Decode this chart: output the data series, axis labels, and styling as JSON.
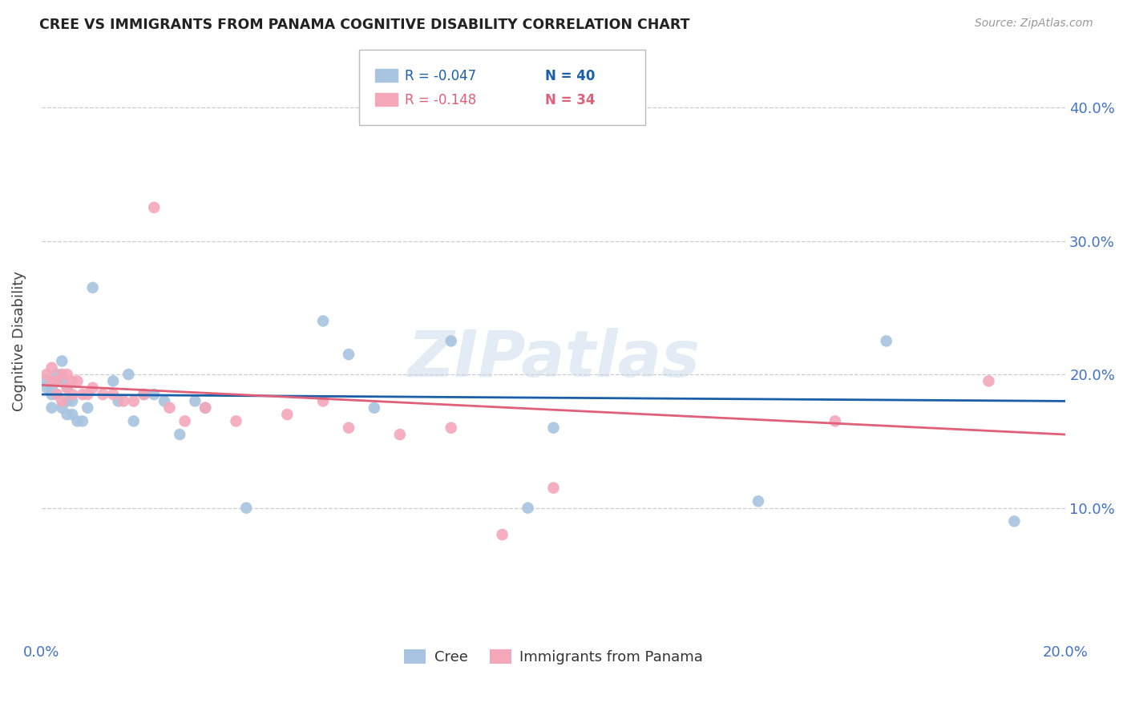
{
  "title": "CREE VS IMMIGRANTS FROM PANAMA COGNITIVE DISABILITY CORRELATION CHART",
  "source": "Source: ZipAtlas.com",
  "xlabel_cree": "Cree",
  "xlabel_panama": "Immigrants from Panama",
  "ylabel": "Cognitive Disability",
  "watermark": "ZIPatlas",
  "xlim": [
    0.0,
    0.2
  ],
  "ylim": [
    0.0,
    0.45
  ],
  "ytick_positions": [
    0.1,
    0.2,
    0.3,
    0.4
  ],
  "ytick_labels": [
    "10.0%",
    "20.0%",
    "30.0%",
    "40.0%"
  ],
  "xtick_positions": [
    0.0,
    0.05,
    0.1,
    0.15,
    0.2
  ],
  "xtick_labels": [
    "0.0%",
    "",
    "",
    "",
    "20.0%"
  ],
  "cree_color": "#a8c4e0",
  "panama_color": "#f4a7b9",
  "cree_line_color": "#1a5fa8",
  "panama_line_color": "#e0607a",
  "legend_R_cree": "R = -0.047",
  "legend_N_cree": "N = 40",
  "legend_R_panama": "R = -0.148",
  "legend_N_panama": "N = 34",
  "cree_x": [
    0.001,
    0.001,
    0.002,
    0.002,
    0.002,
    0.003,
    0.003,
    0.003,
    0.004,
    0.004,
    0.004,
    0.005,
    0.005,
    0.005,
    0.006,
    0.006,
    0.007,
    0.008,
    0.009,
    0.01,
    0.014,
    0.015,
    0.017,
    0.018,
    0.02,
    0.022,
    0.024,
    0.027,
    0.03,
    0.032,
    0.04,
    0.055,
    0.06,
    0.065,
    0.08,
    0.095,
    0.1,
    0.14,
    0.165,
    0.19
  ],
  "cree_y": [
    0.19,
    0.195,
    0.19,
    0.185,
    0.175,
    0.2,
    0.195,
    0.185,
    0.21,
    0.195,
    0.175,
    0.19,
    0.18,
    0.17,
    0.18,
    0.17,
    0.165,
    0.165,
    0.175,
    0.265,
    0.195,
    0.18,
    0.2,
    0.165,
    0.185,
    0.185,
    0.18,
    0.155,
    0.18,
    0.175,
    0.1,
    0.24,
    0.215,
    0.175,
    0.225,
    0.1,
    0.16,
    0.105,
    0.225,
    0.09
  ],
  "panama_x": [
    0.001,
    0.002,
    0.002,
    0.003,
    0.003,
    0.004,
    0.004,
    0.005,
    0.005,
    0.006,
    0.006,
    0.007,
    0.008,
    0.009,
    0.01,
    0.012,
    0.014,
    0.016,
    0.018,
    0.02,
    0.022,
    0.025,
    0.028,
    0.032,
    0.038,
    0.048,
    0.055,
    0.06,
    0.07,
    0.08,
    0.09,
    0.1,
    0.155,
    0.185
  ],
  "panama_y": [
    0.2,
    0.205,
    0.195,
    0.195,
    0.185,
    0.2,
    0.18,
    0.2,
    0.19,
    0.195,
    0.185,
    0.195,
    0.185,
    0.185,
    0.19,
    0.185,
    0.185,
    0.18,
    0.18,
    0.185,
    0.325,
    0.175,
    0.165,
    0.175,
    0.165,
    0.17,
    0.18,
    0.16,
    0.155,
    0.16,
    0.08,
    0.115,
    0.165,
    0.195
  ],
  "cree_trendline_start_y": 0.185,
  "cree_trendline_end_y": 0.18,
  "panama_trendline_start_y": 0.192,
  "panama_trendline_end_y": 0.155
}
